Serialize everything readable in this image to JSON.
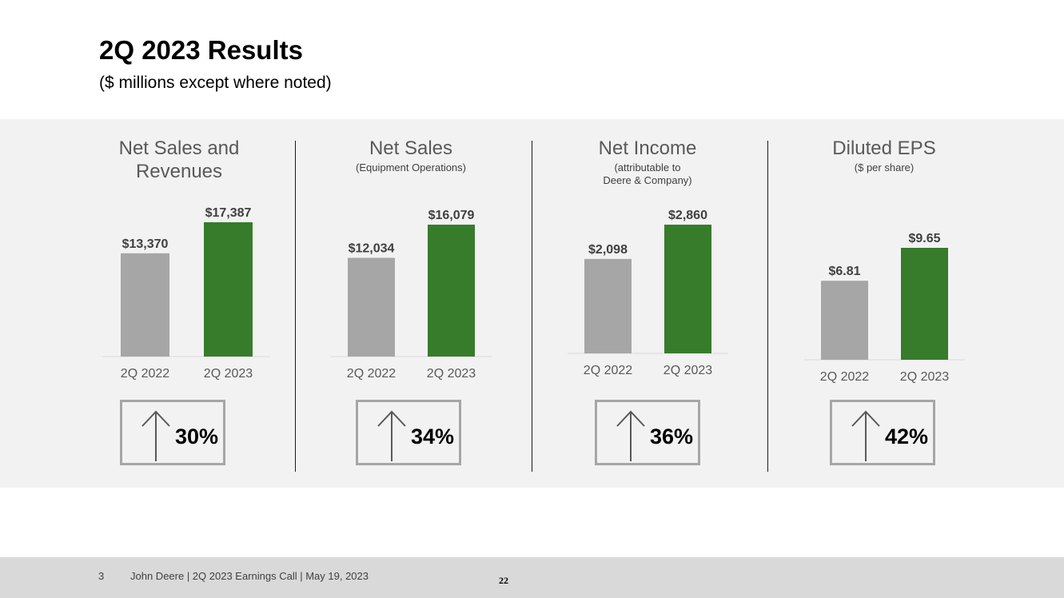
{
  "header": {
    "title": "2Q 2023 Results",
    "subtitle": "($ millions except where noted)"
  },
  "colors": {
    "prior": "#a6a6a6",
    "current": "#367c2b",
    "band": "#f2f2f2"
  },
  "chart_data": [
    {
      "type": "bar",
      "title": "Net Sales and Revenues",
      "subtitle": "",
      "categories": [
        "2Q 2022",
        "2Q 2023"
      ],
      "values": [
        13370,
        17387
      ],
      "value_labels": [
        "$13,370",
        "$17,387"
      ],
      "change": "30%"
    },
    {
      "type": "bar",
      "title": "Net Sales",
      "subtitle": "(Equipment Operations)",
      "categories": [
        "2Q 2022",
        "2Q 2023"
      ],
      "values": [
        12034,
        16079
      ],
      "value_labels": [
        "$12,034",
        "$16,079"
      ],
      "change": "34%"
    },
    {
      "type": "bar",
      "title": "Net Income",
      "subtitle": "(attributable to\nDeere & Company)",
      "categories": [
        "2Q 2022",
        "2Q 2023"
      ],
      "values": [
        2098,
        2860
      ],
      "value_labels": [
        "$2,098",
        "$2,860"
      ],
      "change": "36%"
    },
    {
      "type": "bar",
      "title": "Diluted EPS",
      "subtitle": "($ per share)",
      "categories": [
        "2Q 2022",
        "2Q 2023"
      ],
      "values": [
        6.81,
        9.65
      ],
      "value_labels": [
        "$6.81",
        "$9.65"
      ],
      "change": "42%"
    }
  ],
  "footer": {
    "slide_number": "3",
    "text": "John Deere | 2Q 2023 Earnings Call | May 19, 2023",
    "page": "22"
  }
}
